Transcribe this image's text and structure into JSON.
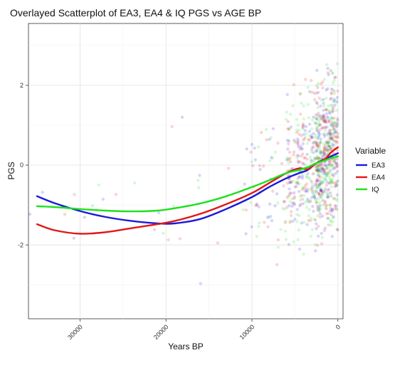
{
  "chart_data": {
    "type": "scatter",
    "title": "Overlayed Scatterplot of EA3, EA4 & IQ PGS vs AGE BP",
    "xlabel": "Years BP",
    "ylabel": "PGS",
    "x_reversed": true,
    "xlim": [
      36000,
      -600
    ],
    "ylim": [
      -3.85,
      3.55
    ],
    "x_ticks": [
      30000,
      20000,
      10000,
      0
    ],
    "x_tick_labels": [
      "30000",
      "20000",
      "10000",
      "0"
    ],
    "y_ticks": [
      2,
      0,
      -2
    ],
    "y_tick_labels": [
      "2",
      "0",
      "-2"
    ],
    "grid": true,
    "legend": {
      "title": "Variable",
      "position": "right",
      "entries": [
        {
          "label": "EA3",
          "color": "#1a1adb"
        },
        {
          "label": "EA4",
          "color": "#e01818"
        },
        {
          "label": "IQ",
          "color": "#1ee01e"
        }
      ]
    },
    "series": [
      {
        "name": "EA3",
        "color": "#1a1adb",
        "smooth_x": [
          35000,
          33000,
          30000,
          27000,
          24000,
          21000,
          19000,
          16000,
          13000,
          10000,
          8000,
          6000,
          4500,
          3500,
          2500,
          1500,
          800,
          0
        ],
        "smooth_y": [
          -0.78,
          -0.95,
          -1.15,
          -1.3,
          -1.4,
          -1.46,
          -1.46,
          -1.35,
          -1.1,
          -0.8,
          -0.55,
          -0.33,
          -0.2,
          -0.12,
          0.05,
          0.15,
          0.22,
          0.3
        ],
        "point_clusters": [
          {
            "x_range": [
              0,
              2500
            ],
            "y_mean": 0.3,
            "y_sd": 0.9,
            "n": 170
          },
          {
            "x_range": [
              2500,
              6000
            ],
            "y_mean": -0.1,
            "y_sd": 0.9,
            "n": 90
          },
          {
            "x_range": [
              6000,
              11000
            ],
            "y_mean": -0.6,
            "y_sd": 0.9,
            "n": 22
          },
          {
            "x_range": [
              11000,
              36000
            ],
            "y_mean": -1.2,
            "y_sd": 0.9,
            "n": 9
          }
        ]
      },
      {
        "name": "EA4",
        "color": "#e01818",
        "smooth_x": [
          35000,
          33000,
          30000,
          27000,
          24000,
          21000,
          19000,
          16000,
          13000,
          10000,
          8000,
          6000,
          4500,
          3500,
          2500,
          1500,
          800,
          0
        ],
        "smooth_y": [
          -1.48,
          -1.63,
          -1.72,
          -1.68,
          -1.58,
          -1.48,
          -1.4,
          -1.22,
          -0.98,
          -0.7,
          -0.45,
          -0.2,
          -0.08,
          -0.1,
          0.05,
          0.15,
          0.32,
          0.45
        ],
        "point_clusters": [
          {
            "x_range": [
              0,
              2500
            ],
            "y_mean": 0.3,
            "y_sd": 0.9,
            "n": 170
          },
          {
            "x_range": [
              2500,
              6000
            ],
            "y_mean": -0.1,
            "y_sd": 0.9,
            "n": 90
          },
          {
            "x_range": [
              6000,
              11000
            ],
            "y_mean": -0.6,
            "y_sd": 0.9,
            "n": 22
          },
          {
            "x_range": [
              11000,
              36000
            ],
            "y_mean": -1.3,
            "y_sd": 0.9,
            "n": 9
          }
        ]
      },
      {
        "name": "IQ",
        "color": "#1ee01e",
        "smooth_x": [
          35000,
          33000,
          30000,
          27000,
          24000,
          21000,
          19000,
          16000,
          13000,
          10000,
          8000,
          6000,
          4500,
          3500,
          2500,
          1500,
          800,
          0
        ],
        "smooth_y": [
          -1.03,
          -1.05,
          -1.1,
          -1.14,
          -1.16,
          -1.14,
          -1.08,
          -0.96,
          -0.78,
          -0.55,
          -0.38,
          -0.2,
          -0.12,
          -0.05,
          0.05,
          0.12,
          0.18,
          0.22
        ],
        "point_clusters": [
          {
            "x_range": [
              0,
              2500
            ],
            "y_mean": 0.3,
            "y_sd": 0.9,
            "n": 170
          },
          {
            "x_range": [
              2500,
              6000
            ],
            "y_mean": -0.1,
            "y_sd": 0.9,
            "n": 90
          },
          {
            "x_range": [
              6000,
              11000
            ],
            "y_mean": -0.5,
            "y_sd": 0.9,
            "n": 22
          },
          {
            "x_range": [
              11000,
              36000
            ],
            "y_mean": -1.0,
            "y_sd": 0.9,
            "n": 9
          }
        ]
      }
    ]
  }
}
